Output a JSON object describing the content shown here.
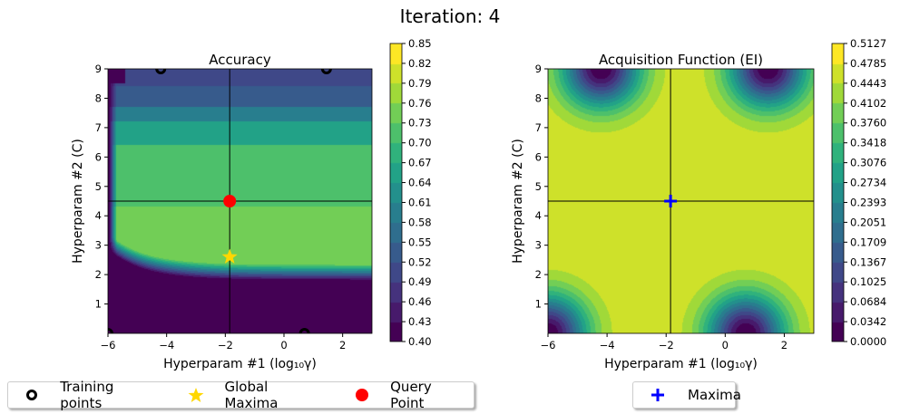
{
  "figure_title": "Iteration: 4",
  "chart_data": [
    {
      "type": "contour",
      "title": "Accuracy",
      "xlabel": "Hyperparam #1 (log₁₀γ)",
      "ylabel": "Hyperparam #2 (C)",
      "xlim": [
        -6,
        3
      ],
      "ylim": [
        0,
        9
      ],
      "xticks": [
        "-6",
        "-4",
        "-2",
        "0",
        "2"
      ],
      "yticks": [
        "1",
        "2",
        "3",
        "4",
        "5",
        "6",
        "7",
        "8",
        "9"
      ],
      "colormap": "viridis",
      "colorbar_ticks": [
        "0.40",
        "0.43",
        "0.46",
        "0.49",
        "0.52",
        "0.55",
        "0.58",
        "0.61",
        "0.64",
        "0.67",
        "0.70",
        "0.73",
        "0.76",
        "0.79",
        "0.82",
        "0.85"
      ],
      "training_points": [
        [
          -4.2,
          9
        ],
        [
          1.45,
          9
        ],
        [
          -6,
          0
        ],
        [
          0.7,
          0
        ]
      ],
      "global_maxima": [
        -1.85,
        2.6
      ],
      "query_point": [
        -1.85,
        4.5
      ],
      "crosshair": [
        -1.85,
        4.5
      ],
      "legend": {
        "placement": "bottom",
        "entries": [
          "Training points",
          "Global Maxima",
          "Query Point"
        ]
      },
      "colors": {
        "training": "#000000",
        "global_maxima": "#ffd700",
        "query": "#ff0000"
      }
    },
    {
      "type": "contour",
      "title": "Acquisition Function (EI)",
      "xlabel": "Hyperparam #1 (log₁₀γ)",
      "ylabel": "Hyperparam #2 (C)",
      "xlim": [
        -6,
        3
      ],
      "ylim": [
        0,
        9
      ],
      "xticks": [
        "-6",
        "-4",
        "-2",
        "0",
        "2"
      ],
      "yticks": [
        "1",
        "2",
        "3",
        "4",
        "5",
        "6",
        "7",
        "8",
        "9"
      ],
      "colormap": "viridis",
      "colorbar_ticks": [
        "0.0000",
        "0.0342",
        "0.0684",
        "0.1025",
        "0.1367",
        "0.1709",
        "0.2051",
        "0.2393",
        "0.2734",
        "0.3076",
        "0.3418",
        "0.3760",
        "0.4102",
        "0.4443",
        "0.4785",
        "0.5127"
      ],
      "maxima": [
        -1.85,
        4.5
      ],
      "crosshair": [
        -1.85,
        4.5
      ],
      "legend": {
        "placement": "bottom",
        "entries": [
          "Maxima"
        ]
      },
      "colors": {
        "maxima": "#0000ff"
      }
    }
  ]
}
